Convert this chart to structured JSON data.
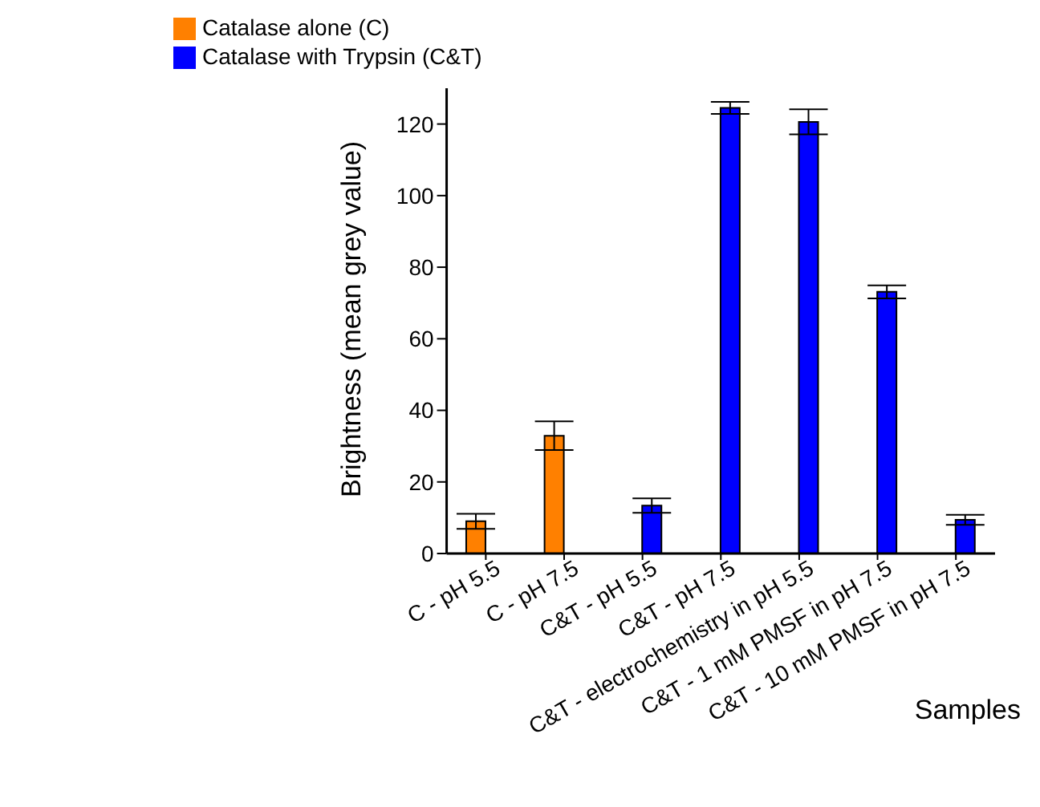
{
  "chart_data": {
    "type": "bar",
    "ylabel": "Brightness (mean grey value)",
    "xlabel": "Samples",
    "categories": [
      "C - pH 5.5",
      "C - pH 7.5",
      "C&T - pH 5.5",
      "C&T - pH 7.5",
      "C&T - electrochemistry in pH 5.5",
      "C&T - 1 mM PMSF in pH 7.5",
      "C&T - 10 mM PMSF in pH 7.5"
    ],
    "series": [
      {
        "name": "Catalase alone (C)",
        "color": "#ff8000",
        "values": [
          9,
          32.9,
          null,
          null,
          null,
          null,
          null
        ],
        "errors": [
          2.1,
          4,
          null,
          null,
          null,
          null,
          null
        ]
      },
      {
        "name": "Catalase with Trypsin (C&T)",
        "color": "#0000ff",
        "values": [
          null,
          null,
          13.4,
          124.5,
          120.6,
          73.1,
          9.4
        ],
        "errors": [
          null,
          null,
          2,
          1.7,
          3.5,
          1.8,
          1.4
        ]
      }
    ],
    "ylim": [
      0,
      130
    ],
    "yticks": [
      0,
      20,
      40,
      60,
      80,
      100,
      120
    ],
    "grid": false,
    "legend": "top left"
  }
}
